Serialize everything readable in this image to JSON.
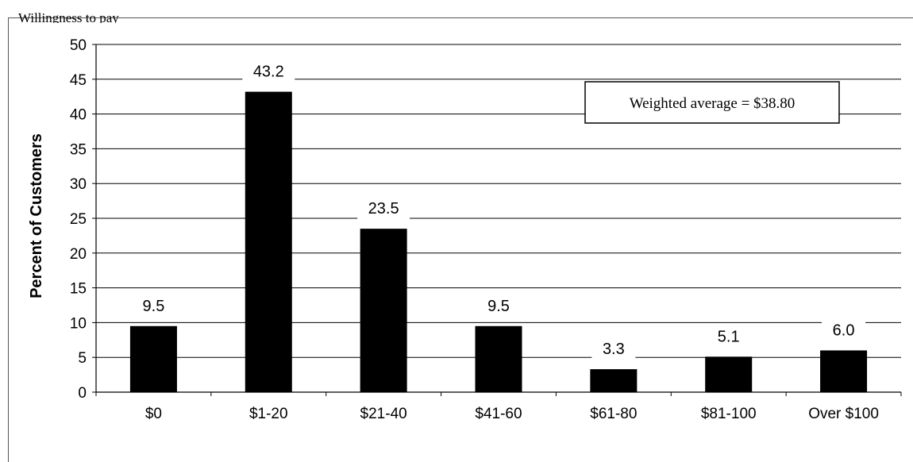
{
  "header_text": "Willingness to pay",
  "chart_data": {
    "type": "bar",
    "categories": [
      "$0",
      "$1-20",
      "$21-40",
      "$41-60",
      "$61-80",
      "$81-100",
      "Over $100"
    ],
    "values": [
      9.5,
      43.2,
      23.5,
      9.5,
      3.3,
      5.1,
      6.0
    ],
    "data_labels": [
      "9.5",
      "43.2",
      "23.5",
      "9.5",
      "3.3",
      "5.1",
      "6.0"
    ],
    "title": "",
    "xlabel": "",
    "ylabel": "Percent of Customers",
    "ylim": [
      0,
      50
    ],
    "yticks": [
      0,
      5,
      10,
      15,
      20,
      25,
      30,
      35,
      40,
      45,
      50
    ],
    "grid": true,
    "annotation": "Weighted average = $38.80",
    "colors": {
      "bar": "#000000",
      "grid": "#000000"
    }
  }
}
